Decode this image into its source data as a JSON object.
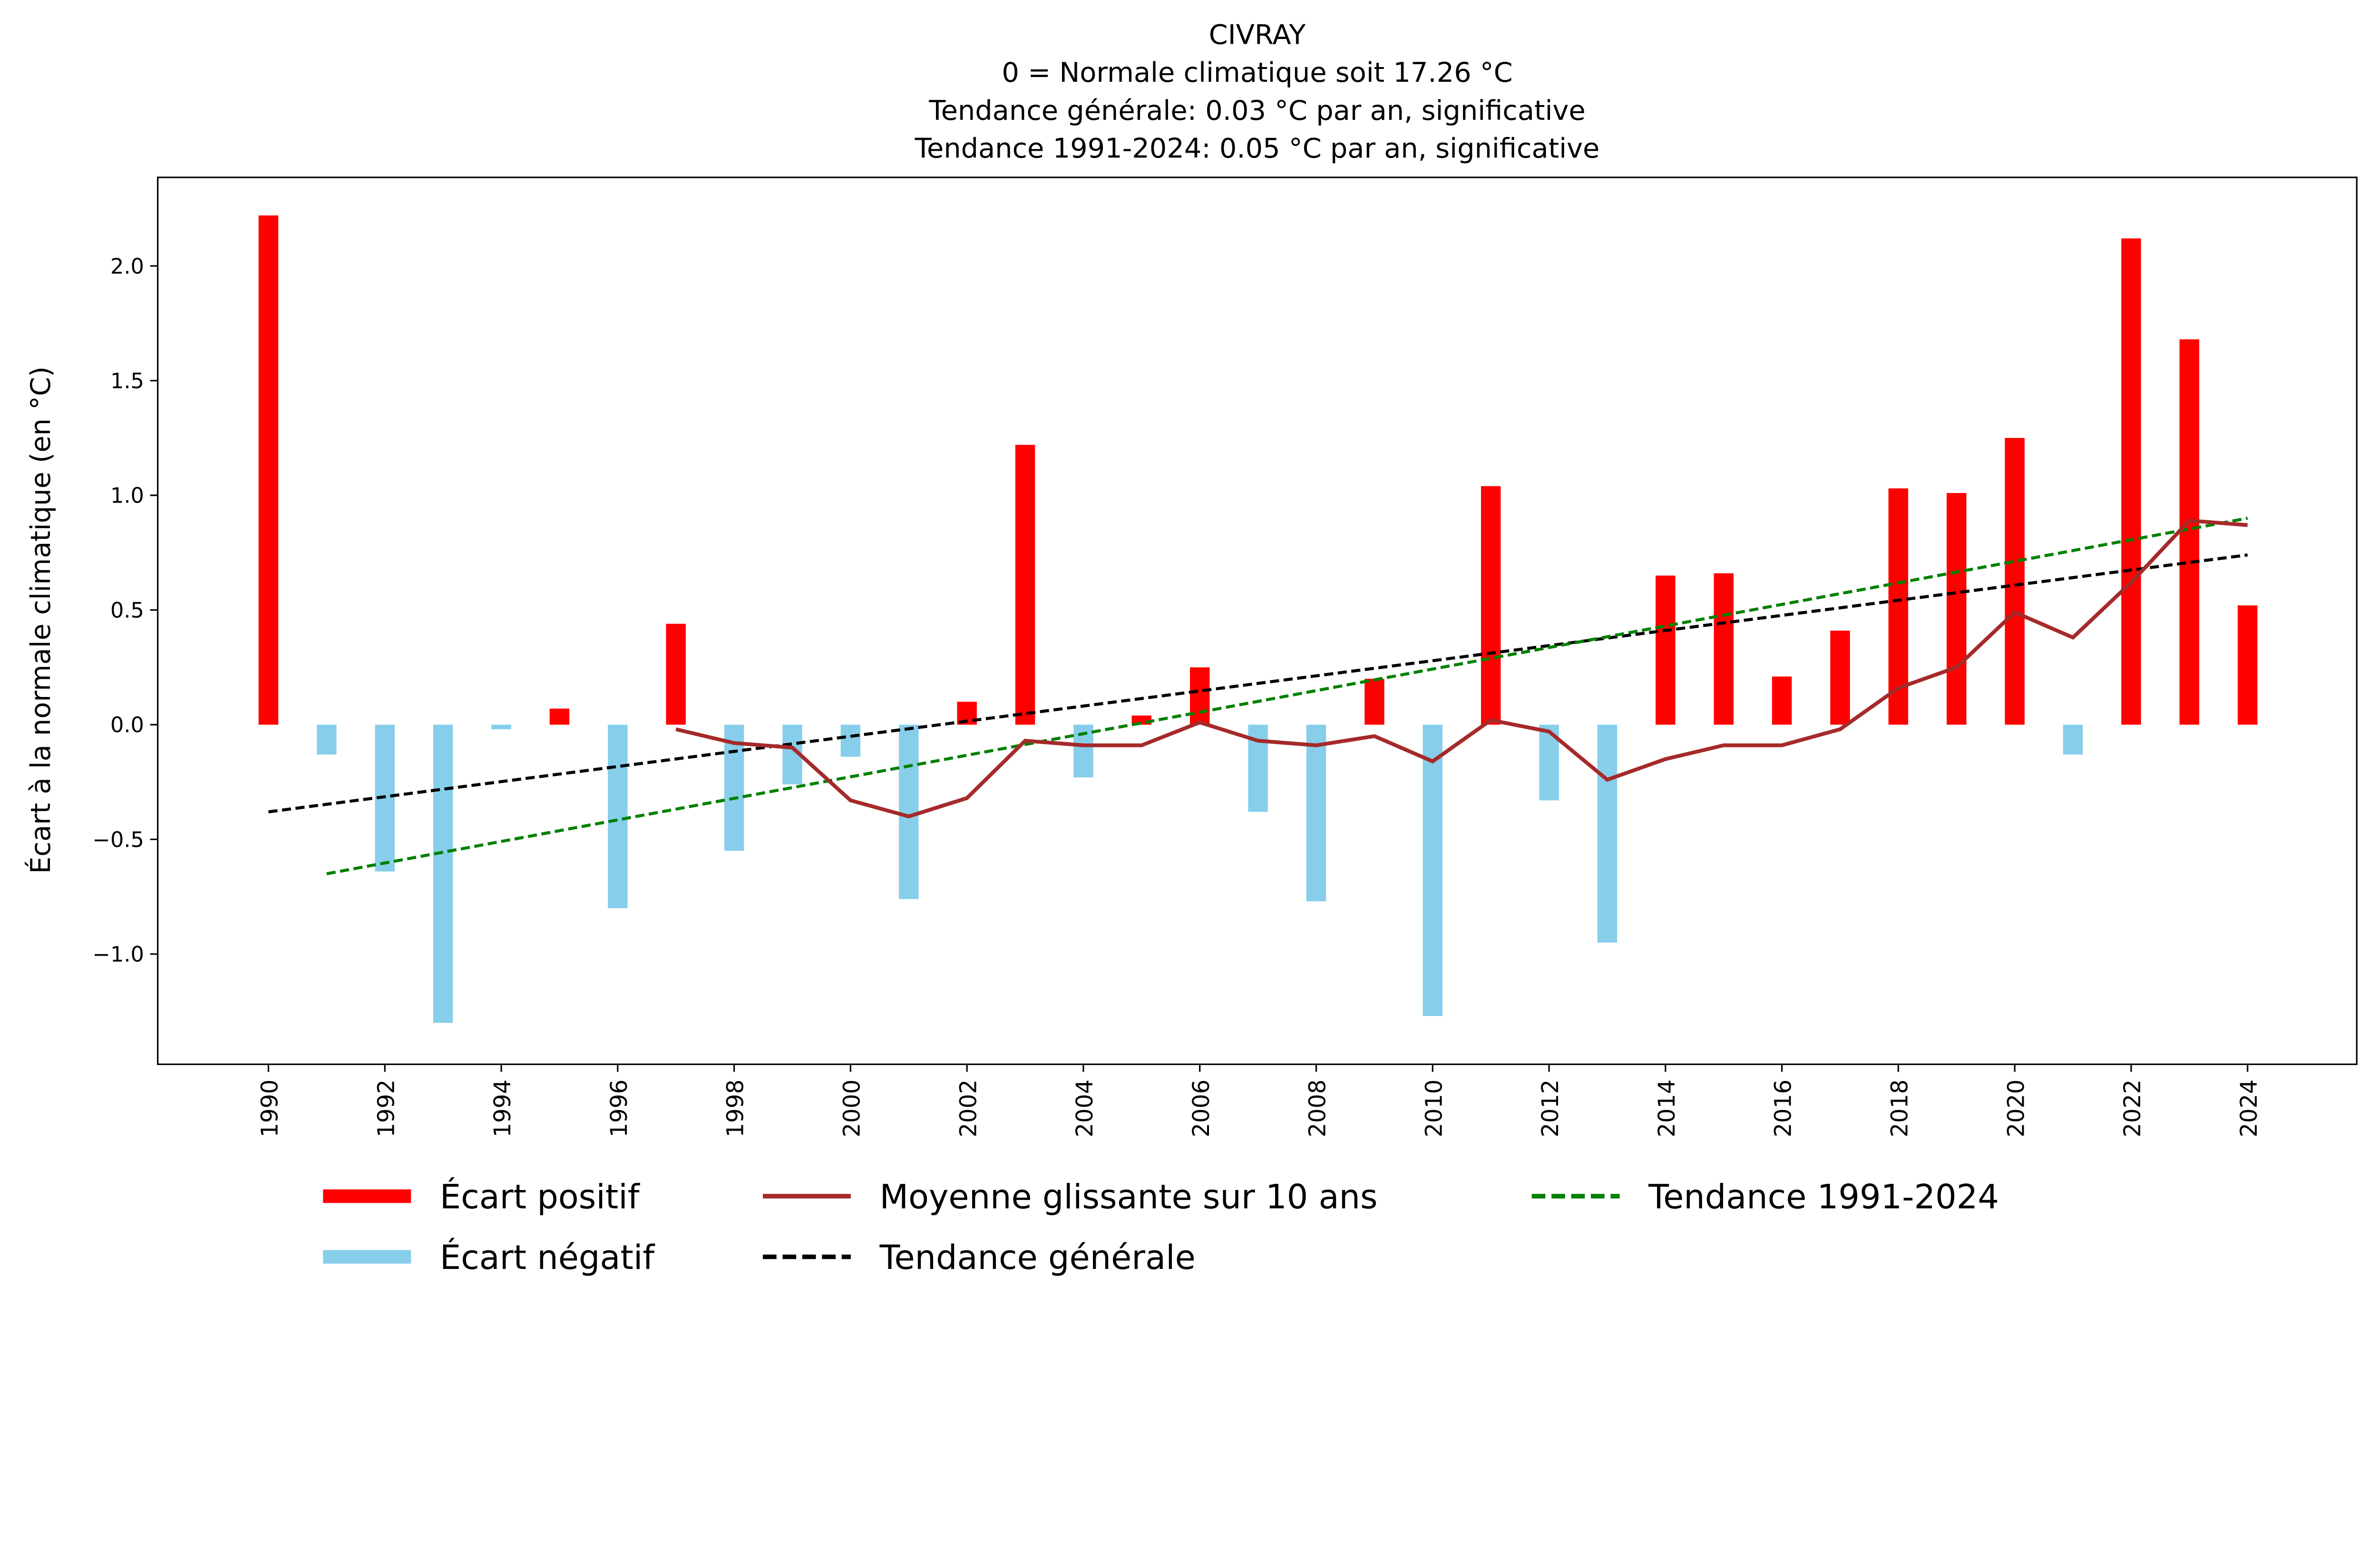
{
  "chart_data": {
    "type": "bar",
    "title": "CIVRAY",
    "subtitles": [
      "0 = Normale climatique soit 17.26 °C",
      "Tendance générale: 0.03 °C par an, significative",
      "Tendance 1991-2024: 0.05 °C par an, significative"
    ],
    "xlabel": "",
    "ylabel": "Écart à la normale climatique (en °C)",
    "ylim": [
      -1.5,
      2.35
    ],
    "xlim": [
      1987.9,
      2026.1
    ],
    "yticks": [
      -1.0,
      -0.5,
      0.0,
      0.5,
      1.0,
      1.5,
      2.0
    ],
    "ytick_labels": [
      "−1.0",
      "−0.5",
      "0.0",
      "0.5",
      "1.0",
      "1.5",
      "2.0"
    ],
    "xticks": [
      1990,
      1992,
      1994,
      1996,
      1998,
      2000,
      2002,
      2004,
      2006,
      2008,
      2010,
      2012,
      2014,
      2016,
      2018,
      2020,
      2022,
      2024
    ],
    "xtick_labels": [
      "1990",
      "1992",
      "1994",
      "1996",
      "1998",
      "2000",
      "2002",
      "2004",
      "2006",
      "2008",
      "2010",
      "2012",
      "2014",
      "2016",
      "2018",
      "2020",
      "2022",
      "2024"
    ],
    "years": [
      1990,
      1991,
      1992,
      1993,
      1994,
      1995,
      1996,
      1997,
      1998,
      1999,
      2000,
      2001,
      2002,
      2003,
      2004,
      2005,
      2006,
      2007,
      2008,
      2009,
      2010,
      2011,
      2012,
      2013,
      2014,
      2015,
      2016,
      2017,
      2018,
      2019,
      2020,
      2021,
      2022,
      2023,
      2024
    ],
    "anomalies": [
      2.22,
      -0.13,
      -0.64,
      -1.3,
      -0.02,
      0.07,
      -0.8,
      0.44,
      -0.55,
      -0.26,
      -0.14,
      -0.76,
      0.1,
      1.22,
      -0.23,
      0.04,
      0.25,
      -0.38,
      -0.77,
      0.2,
      -1.27,
      1.04,
      -0.33,
      -0.95,
      0.65,
      0.66,
      0.21,
      0.41,
      1.03,
      1.01,
      1.25,
      -0.13,
      2.12,
      1.68,
      0.52
    ],
    "moving_average": {
      "years": [
        1997,
        1998,
        1999,
        2000,
        2001,
        2002,
        2003,
        2004,
        2005,
        2006,
        2007,
        2008,
        2009,
        2010,
        2011,
        2012,
        2013,
        2014,
        2015,
        2016,
        2017,
        2018,
        2019,
        2020,
        2021,
        2022,
        2023,
        2024
      ],
      "values": [
        -0.02,
        -0.08,
        -0.1,
        -0.33,
        -0.4,
        -0.32,
        -0.07,
        -0.09,
        -0.09,
        0.01,
        -0.07,
        -0.09,
        -0.05,
        -0.16,
        0.02,
        -0.03,
        -0.24,
        -0.15,
        -0.09,
        -0.09,
        -0.02,
        0.16,
        0.25,
        0.49,
        0.38,
        0.62,
        0.89,
        0.87
      ]
    },
    "trend_general": {
      "x": [
        1990,
        2024
      ],
      "y": [
        -0.38,
        0.74
      ]
    },
    "trend_recent": {
      "x": [
        1991,
        2024
      ],
      "y": [
        -0.65,
        0.9
      ]
    },
    "colors": {
      "positive": "#ff0000",
      "negative": "#87ceeb",
      "moving_average": "#a52a2a",
      "trend_general": "#000000",
      "trend_recent": "#008000"
    },
    "legend": {
      "placement": "bottom",
      "entries": [
        {
          "key": "positive",
          "label": "Écart positif"
        },
        {
          "key": "negative",
          "label": "Écart négatif"
        },
        {
          "key": "moving_average",
          "label": "Moyenne glissante sur 10 ans"
        },
        {
          "key": "trend_general",
          "label": "Tendance générale"
        },
        {
          "key": "trend_recent",
          "label": "Tendance 1991-2024"
        }
      ]
    },
    "grid": false
  }
}
